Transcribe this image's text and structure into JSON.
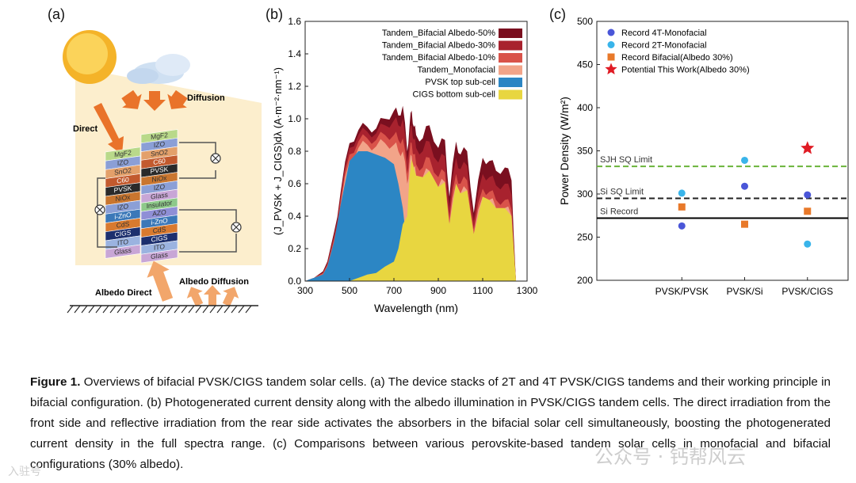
{
  "panel_a": {
    "label": "(a)",
    "direct": "Direct",
    "diffusion": "Diffusion",
    "albedo_direct": "Albedo Direct",
    "albedo_diffusion": "Albedo Diffusion",
    "stack_left": [
      "MgF2",
      "IZO",
      "SnO2",
      "C60",
      "PVSK",
      "NiOx",
      "IZO",
      "i-ZnO",
      "CdS",
      "CIGS",
      "ITO",
      "Glass"
    ],
    "stack_right": [
      "MgF2",
      "IZO",
      "SnO2",
      "C60",
      "PVSK",
      "NiOx",
      "IZO",
      "Glass",
      "Insulator",
      "AZO",
      "i-ZnO",
      "CdS",
      "CIGS",
      "ITO",
      "Glass"
    ]
  },
  "chart_data": [
    {
      "type": "area",
      "label": "(b)",
      "xlabel": "Wavelength (nm)",
      "ylabel": "(J_PVSK + J_CIGS)dλ (A·m⁻²·nm⁻¹)",
      "xlim": [
        300,
        1300
      ],
      "ylim": [
        0.0,
        1.6
      ],
      "xticks": [
        "300",
        "500",
        "700",
        "900",
        "1100",
        "1300"
      ],
      "yticks": [
        "0.0",
        "0.2",
        "0.4",
        "0.6",
        "0.8",
        "1.0",
        "1.2",
        "1.4",
        "1.6"
      ],
      "legend": [
        "Tandem_Bifacial Albedo-50%",
        "Tandem_Bifacial Albedo-30%",
        "Tandem_Bifacial Albedo-10%",
        "Tandem_Monofacial",
        "PVSK top sub-cell",
        "CIGS bottom sub-cell"
      ],
      "colors": [
        "#7a0f1f",
        "#a8222e",
        "#d9534a",
        "#f2a489",
        "#2c86c4",
        "#e8d640"
      ],
      "wavelength": [
        300,
        340,
        380,
        400,
        430,
        460,
        500,
        540,
        580,
        620,
        660,
        700,
        720,
        740,
        760,
        770,
        780,
        790,
        800,
        830,
        860,
        900,
        930,
        950,
        980,
        1000,
        1030,
        1060,
        1100,
        1130,
        1160,
        1200,
        1230,
        1250
      ],
      "series": [
        {
          "name": "Tandem_Bifacial Albedo-50%",
          "values": [
            0.0,
            0.02,
            0.06,
            0.12,
            0.3,
            0.55,
            0.85,
            0.93,
            0.95,
            0.94,
            1.0,
            1.05,
            1.02,
            1.08,
            0.8,
            0.95,
            1.05,
            0.95,
            0.9,
            0.88,
            0.96,
            0.82,
            0.87,
            0.52,
            0.86,
            0.78,
            0.8,
            0.42,
            0.76,
            0.74,
            0.68,
            0.7,
            0.62,
            0.0
          ]
        },
        {
          "name": "Tandem_Bifacial Albedo-30%",
          "values": [
            0.0,
            0.02,
            0.05,
            0.11,
            0.28,
            0.53,
            0.82,
            0.9,
            0.92,
            0.91,
            0.96,
            0.99,
            0.96,
            1.0,
            0.74,
            0.88,
            0.96,
            0.87,
            0.82,
            0.8,
            0.86,
            0.73,
            0.77,
            0.45,
            0.76,
            0.69,
            0.71,
            0.37,
            0.66,
            0.64,
            0.59,
            0.6,
            0.53,
            0.0
          ]
        },
        {
          "name": "Tandem_Bifacial Albedo-10%",
          "values": [
            0.0,
            0.02,
            0.05,
            0.1,
            0.26,
            0.5,
            0.78,
            0.86,
            0.88,
            0.87,
            0.9,
            0.9,
            0.87,
            0.88,
            0.66,
            0.79,
            0.85,
            0.78,
            0.72,
            0.7,
            0.76,
            0.64,
            0.67,
            0.39,
            0.66,
            0.6,
            0.62,
            0.32,
            0.57,
            0.55,
            0.5,
            0.5,
            0.44,
            0.0
          ]
        },
        {
          "name": "Tandem_Monofacial",
          "values": [
            0.0,
            0.02,
            0.04,
            0.09,
            0.24,
            0.47,
            0.74,
            0.82,
            0.84,
            0.83,
            0.85,
            0.84,
            0.8,
            0.8,
            0.6,
            0.72,
            0.77,
            0.7,
            0.65,
            0.64,
            0.68,
            0.58,
            0.61,
            0.35,
            0.6,
            0.54,
            0.56,
            0.29,
            0.52,
            0.5,
            0.45,
            0.45,
            0.4,
            0.0
          ]
        },
        {
          "name": "PVSK top sub-cell",
          "values": [
            0.0,
            0.02,
            0.04,
            0.09,
            0.24,
            0.47,
            0.74,
            0.8,
            0.8,
            0.78,
            0.76,
            0.72,
            0.6,
            0.45,
            0.2,
            0.08,
            0.02,
            0.0,
            0.0,
            0.0,
            0.0,
            0.0,
            0.0,
            0.0,
            0.0,
            0.0,
            0.0,
            0.0,
            0.0,
            0.0,
            0.0,
            0.0,
            0.0,
            0.0
          ]
        },
        {
          "name": "CIGS bottom sub-cell",
          "values": [
            0.0,
            0.0,
            0.0,
            0.0,
            0.0,
            0.0,
            0.0,
            0.02,
            0.04,
            0.05,
            0.09,
            0.12,
            0.2,
            0.35,
            0.4,
            0.64,
            0.75,
            0.7,
            0.65,
            0.64,
            0.68,
            0.58,
            0.61,
            0.35,
            0.6,
            0.54,
            0.56,
            0.29,
            0.52,
            0.5,
            0.45,
            0.45,
            0.4,
            0.0
          ]
        }
      ]
    },
    {
      "type": "scatter",
      "label": "(c)",
      "ylabel": "Power Density (W/m²)",
      "ylim": [
        200,
        500
      ],
      "yticks": [
        "200",
        "250",
        "300",
        "350",
        "400",
        "450",
        "500"
      ],
      "categories": [
        "PVSK/PVSK",
        "PVSK/Si",
        "PVSK/CIGS"
      ],
      "series": [
        {
          "name": "Record 4T-Monofacial",
          "marker": "circle",
          "color": "#4a56d8",
          "values": [
            263,
            309,
            299
          ]
        },
        {
          "name": "Record 2T-Monofacial",
          "marker": "circle",
          "color": "#39b4ea",
          "values": [
            301,
            339,
            242
          ]
        },
        {
          "name": "Record Bifacial(Albedo 30%)",
          "marker": "square",
          "color": "#e8792a",
          "values": [
            285,
            265,
            280
          ]
        },
        {
          "name": "Potential This Work(Albedo 30%)",
          "marker": "star",
          "color": "#e01b24",
          "values": [
            null,
            null,
            353
          ]
        }
      ],
      "reference_lines": [
        {
          "name": "SJH SQ Limit",
          "value": 332,
          "style": "dashed",
          "color": "#6ab43a"
        },
        {
          "name": "Si SQ Limit",
          "value": 295,
          "style": "dashed",
          "color": "#222222"
        },
        {
          "name": "Si Record",
          "value": 272,
          "style": "solid",
          "color": "#000000"
        }
      ]
    }
  ],
  "caption": {
    "label": "Figure 1.",
    "text": " Overviews of bifacial PVSK/CIGS tandem solar cells. (a) The device stacks of 2T and 4T PVSK/CIGS tandems and their working principle in bifacial configuration. (b) Photogenerated current density along with the albedo illumination in PVSK/CIGS tandem cells. The direct irradiation from the front side and reflective irradiation from the rear side activates the absorbers in the bifacial solar cell simultaneously, boosting the photogenerated current density in the full spectra range. (c) Comparisons between various perovskite-based tandem solar cells in monofacial and bifacial configurations (30% albedo)."
  },
  "watermark": {
    "right": "公众号 · 钙帮风云",
    "left": "入驻号"
  }
}
